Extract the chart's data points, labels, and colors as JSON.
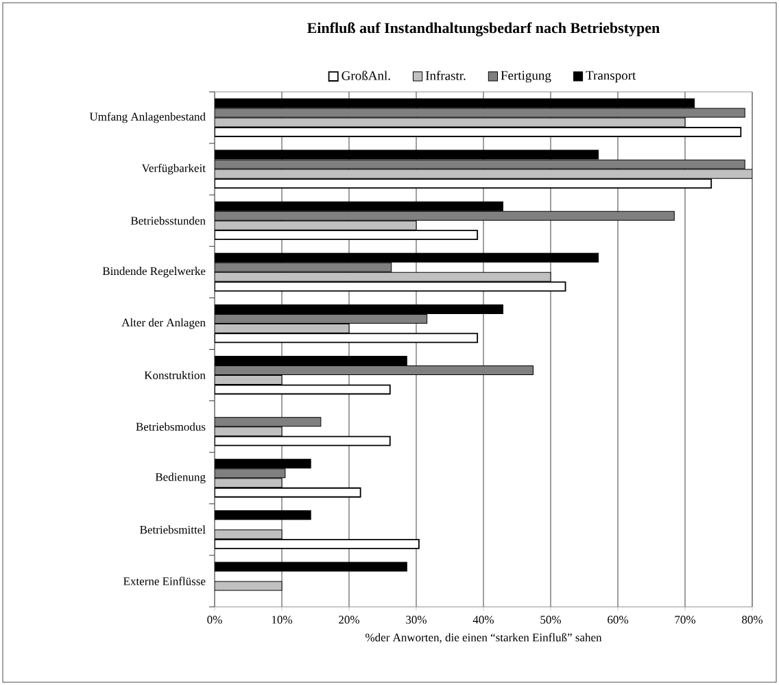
{
  "chart_data": {
    "type": "bar",
    "orientation": "horizontal",
    "title": "Einfluß auf Instandhaltungsbedarf nach Betriebstypen",
    "xlabel": "%der Anworten, die einen “starken Einfluß” sahen",
    "categories": [
      "Umfang Anlagenbestand",
      "Verfügbarkeit",
      "Betriebsstunden",
      "Bindende Regelwerke",
      "Alter der Anlagen",
      "Konstruktion",
      "Betriebsmodus",
      "Bedienung",
      "Betriebsmittel",
      "Externe Einflüsse"
    ],
    "series": [
      {
        "name": "GroßAnl.",
        "color": "#ffffff",
        "values": [
          78.3,
          73.9,
          39.1,
          52.2,
          39.1,
          26.1,
          26.1,
          21.7,
          30.4,
          null
        ]
      },
      {
        "name": "Infrastr.",
        "color": "#c0c0c0",
        "values": [
          70,
          80,
          30,
          50,
          20,
          10,
          10,
          10,
          10,
          10
        ]
      },
      {
        "name": "Fertigung",
        "color": "#808080",
        "values": [
          78.9,
          78.9,
          68.4,
          26.3,
          31.6,
          47.4,
          15.8,
          10.5,
          null,
          null
        ]
      },
      {
        "name": "Transport",
        "color": "#000000",
        "values": [
          71.4,
          57.1,
          42.9,
          57.1,
          42.9,
          28.6,
          null,
          14.3,
          14.3,
          28.6
        ]
      }
    ],
    "xlim": [
      0,
      80
    ],
    "xticks": [
      {
        "value": 0,
        "label": "0%"
      },
      {
        "value": 10,
        "label": "10%"
      },
      {
        "value": 20,
        "label": "20%"
      },
      {
        "value": 30,
        "label": "30%"
      },
      {
        "value": 40,
        "label": "40%"
      },
      {
        "value": 50,
        "label": "50%"
      },
      {
        "value": 60,
        "label": "60%"
      },
      {
        "value": 70,
        "label": "70%"
      },
      {
        "value": 80,
        "label": "80%"
      }
    ],
    "grid": "x",
    "legend": "top"
  }
}
